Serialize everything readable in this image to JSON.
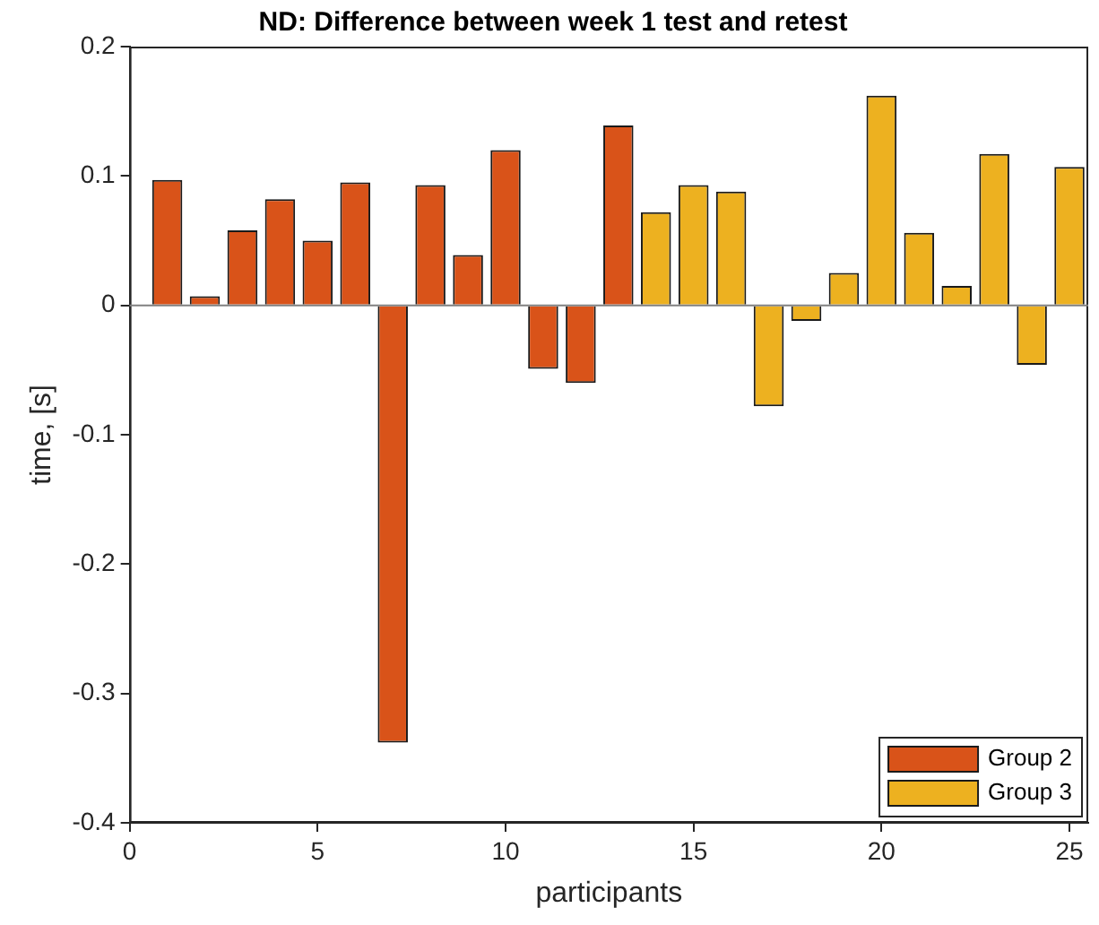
{
  "chart_data": {
    "type": "bar",
    "title": "ND: Difference between week 1 test and retest",
    "xlabel": "participants",
    "ylabel": "time, [s]",
    "xlim": [
      0,
      25.5
    ],
    "xticks": [
      0,
      5,
      10,
      15,
      20,
      25
    ],
    "ylim": [
      -0.4,
      0.2
    ],
    "yticks": [
      -0.4,
      -0.3,
      -0.2,
      -0.1,
      0,
      0.1,
      0.2
    ],
    "grid": false,
    "legend": "bottom right",
    "ref_lines": [
      {
        "axis": "y",
        "value": 0,
        "color": "#808080"
      }
    ],
    "series": [
      {
        "name": "Group 2",
        "color": "#d95319",
        "x": [
          1,
          2,
          3,
          4,
          5,
          6,
          7,
          8,
          9,
          10,
          11,
          12,
          13
        ],
        "values": [
          0.097,
          0.007,
          0.058,
          0.082,
          0.05,
          0.095,
          -0.338,
          0.093,
          0.039,
          0.12,
          -0.049,
          -0.06,
          0.139
        ]
      },
      {
        "name": "Group 3",
        "color": "#edb120",
        "x": [
          14,
          15,
          16,
          17,
          18,
          19,
          20,
          21,
          22,
          23,
          24,
          25
        ],
        "values": [
          0.072,
          0.093,
          0.088,
          -0.078,
          -0.012,
          0.025,
          0.162,
          0.056,
          0.015,
          0.117,
          -0.046,
          0.107
        ]
      }
    ]
  }
}
